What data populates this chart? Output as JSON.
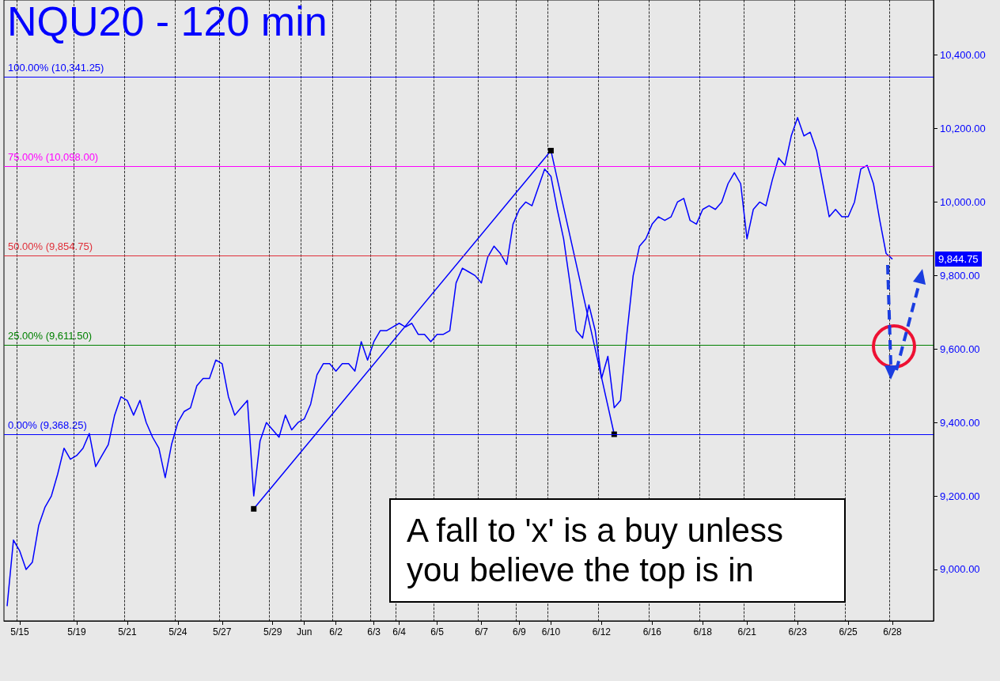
{
  "chart_data": {
    "type": "line",
    "title": "NQU20 - 120 min",
    "categories": [
      null,
      null,
      "5/15",
      null,
      null,
      null,
      null,
      null,
      null,
      null,
      null,
      "5/19",
      null,
      null,
      null,
      null,
      null,
      null,
      null,
      "5/21",
      null,
      null,
      null,
      null,
      null,
      null,
      null,
      "5/24",
      null,
      null,
      null,
      null,
      null,
      null,
      "5/27",
      null,
      null,
      null,
      null,
      null,
      null,
      null,
      "5/29",
      null,
      null,
      null,
      null,
      "Jun",
      null,
      null,
      null,
      null,
      "6/2",
      null,
      null,
      null,
      null,
      null,
      "6/3",
      null,
      null,
      null,
      "6/4",
      null,
      null,
      null,
      null,
      null,
      "6/5",
      null,
      null,
      null,
      null,
      null,
      null,
      "6/7",
      null,
      null,
      null,
      null,
      null,
      "6/9",
      null,
      null,
      null,
      null,
      "6/10",
      null,
      null,
      null,
      null,
      null,
      null,
      null,
      "6/12",
      null,
      null,
      null,
      null,
      null,
      null,
      null,
      "6/16",
      null,
      null,
      null,
      null,
      null,
      null,
      null,
      "6/18",
      null,
      null,
      null,
      null,
      null,
      null,
      "6/21",
      null,
      null,
      null,
      null,
      null,
      null,
      null,
      "6/23",
      null,
      null,
      null,
      null,
      null,
      null,
      null,
      "6/25",
      null,
      null,
      null,
      null,
      null,
      null,
      "6/28",
      null,
      null,
      null,
      null,
      null,
      null
    ],
    "series": [
      {
        "color": "#0000ff",
        "marker": "none",
        "values": [
          8900,
          9080,
          9050,
          9000,
          9020,
          9120,
          9170,
          9200,
          9260,
          9330,
          9300,
          9310,
          9330,
          9370,
          9280,
          9310,
          9340,
          9420,
          9470,
          9460,
          9420,
          9460,
          9400,
          9360,
          9330,
          9250,
          9340,
          9400,
          9430,
          9440,
          9500,
          9520,
          9520,
          9570,
          9560,
          9470,
          9420,
          9440,
          9460,
          9200,
          9350,
          9400,
          9380,
          9360,
          9420,
          9380,
          9400,
          9410,
          9450,
          9530,
          9560,
          9560,
          9540,
          9560,
          9560,
          9540,
          9620,
          9570,
          9620,
          9650,
          9650,
          9660,
          9670,
          9660,
          9670,
          9640,
          9640,
          9620,
          9640,
          9640,
          9650,
          9780,
          9820,
          9810,
          9800,
          9780,
          9850,
          9880,
          9860,
          9830,
          9940,
          9980,
          10000,
          9990,
          10040,
          10090,
          10070,
          9980,
          9900,
          9780,
          9650,
          9630,
          9720,
          9650,
          9520,
          9580,
          9440,
          9460,
          9640,
          9800,
          9880,
          9900,
          9940,
          9960,
          9950,
          9960,
          10000,
          10010,
          9950,
          9940,
          9980,
          9990,
          9980,
          10000,
          10050,
          10080,
          10050,
          9900,
          9980,
          10000,
          9990,
          10060,
          10120,
          10100,
          10180,
          10230,
          10180,
          10190,
          10140,
          10050,
          9960,
          9980,
          9960,
          9960,
          10000,
          10090,
          10100,
          10050,
          9950,
          9860,
          9844.75,
          null,
          null,
          null,
          null,
          null,
          null
        ]
      },
      {
        "color": "#0000ff",
        "marker": "square",
        "values": [
          null,
          null,
          null,
          null,
          null,
          null,
          null,
          null,
          null,
          null,
          null,
          null,
          null,
          null,
          null,
          null,
          null,
          null,
          null,
          null,
          null,
          null,
          null,
          null,
          null,
          null,
          null,
          null,
          null,
          null,
          null,
          null,
          null,
          null,
          null,
          null,
          null,
          null,
          null,
          9165,
          null,
          null,
          null,
          null,
          null,
          null,
          null,
          null,
          null,
          null,
          null,
          null,
          null,
          null,
          null,
          null,
          null,
          null,
          null,
          null,
          null,
          null,
          null,
          null,
          null,
          null,
          null,
          null,
          null,
          null,
          null,
          null,
          null,
          null,
          null,
          null,
          null,
          null,
          null,
          null,
          null,
          null,
          null,
          null,
          null,
          null,
          10140,
          null,
          null,
          null,
          null,
          null,
          null,
          null,
          null,
          null,
          9368,
          null,
          null,
          null,
          null,
          null,
          null,
          null,
          null,
          null,
          null,
          null,
          null,
          null,
          null,
          null,
          null,
          null,
          null,
          null,
          null,
          null,
          null,
          null,
          null,
          null,
          null,
          null,
          null,
          null,
          null,
          null,
          null,
          null,
          null,
          null,
          null,
          null,
          null,
          null,
          null,
          null,
          null,
          null,
          null,
          null,
          null,
          null,
          null,
          null,
          null
        ]
      }
    ],
    "ylim": [
      8860,
      10550
    ],
    "yticks": [
      {
        "value": 9000,
        "label": "9,000.00"
      },
      {
        "value": 9200,
        "label": "9,200.00"
      },
      {
        "value": 9400,
        "label": "9,400.00"
      },
      {
        "value": 9600,
        "label": "9,600.00"
      },
      {
        "value": 9800,
        "label": "9,800.00"
      },
      {
        "value": 10000,
        "label": "10,000.00"
      },
      {
        "value": 10200,
        "label": "10,200.00"
      },
      {
        "value": 10400,
        "label": "10,400.00"
      }
    ],
    "grid": "x",
    "ref_lines": [
      {
        "axis": "y",
        "value": 10341.25,
        "label": "100.00% (10,341.25)",
        "color": "#0000ff"
      },
      {
        "axis": "y",
        "value": 10098,
        "label": "75.00% (10,098.00)",
        "color": "#ff00ff"
      },
      {
        "axis": "y",
        "value": 9854.75,
        "label": "50.00% (9,854.75)",
        "color": "#e0303a"
      },
      {
        "axis": "y",
        "value": 9611.5,
        "label": "25.00% (9,611.50)",
        "color": "#008000"
      },
      {
        "axis": "y",
        "value": 9368.25,
        "label": "0.00% (9,368.25)",
        "color": "#0000ff"
      }
    ],
    "annotations": [
      "A fall to 'x' is a buy unless you believe the top is in",
      "9,844.75"
    ]
  }
}
